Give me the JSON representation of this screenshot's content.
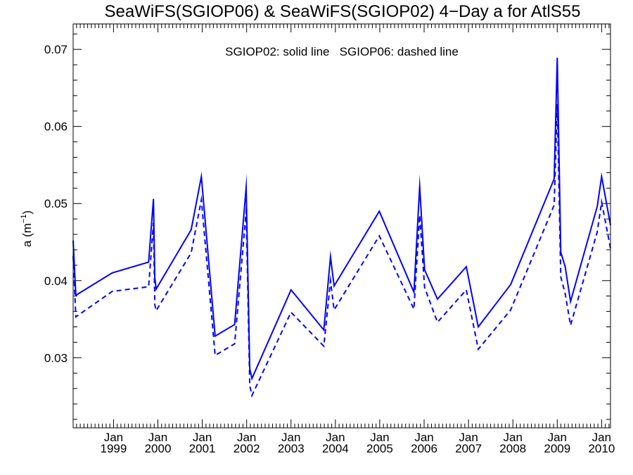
{
  "chart_data": {
    "type": "line",
    "title": "SeaWiFS(SGIOP06) & SeaWiFS(SGIOP02) 4−Day a for AtlS55",
    "ylabel_main": "a (m",
    "ylabel_sup": "−1",
    "ylabel_close": ")",
    "xlabel": "",
    "annotation": "SGIOP02: solid line   SGIOP06: dashed line",
    "x_unit": "date (decimal year)",
    "xlim": [
      1998.09,
      2010.2
    ],
    "ylim": [
      0.0209,
      0.0733
    ],
    "y_ticks": [
      0.03,
      0.04,
      0.05,
      0.06,
      0.07
    ],
    "y_tick_labels": [
      "0.03",
      "0.04",
      "0.05",
      "0.06",
      "0.07"
    ],
    "x_ticks": [
      {
        "x": 1999.0,
        "month": "Jan",
        "year": "1999"
      },
      {
        "x": 2000.0,
        "month": "Jan",
        "year": "2000"
      },
      {
        "x": 2001.0,
        "month": "Jan",
        "year": "2001"
      },
      {
        "x": 2002.0,
        "month": "Jan",
        "year": "2002"
      },
      {
        "x": 2003.0,
        "month": "Jan",
        "year": "2003"
      },
      {
        "x": 2004.0,
        "month": "Jan",
        "year": "2004"
      },
      {
        "x": 2005.0,
        "month": "Jan",
        "year": "2005"
      },
      {
        "x": 2006.0,
        "month": "Jan",
        "year": "2006"
      },
      {
        "x": 2007.0,
        "month": "Jan",
        "year": "2007"
      },
      {
        "x": 2008.0,
        "month": "Jan",
        "year": "2008"
      },
      {
        "x": 2009.0,
        "month": "Jan",
        "year": "2009"
      },
      {
        "x": 2010.0,
        "month": "Jan",
        "year": "2010"
      }
    ],
    "line_color": "#0000ff",
    "series": [
      {
        "name": "SGIOP02",
        "style": "solid",
        "x": [
          1998.09,
          1998.15,
          1998.97,
          1999.79,
          1999.9,
          1999.93,
          1999.96,
          2000.75,
          2000.98,
          2001.29,
          2001.73,
          2001.99,
          2002.07,
          2002.12,
          2003.0,
          2003.74,
          2003.89,
          2003.97,
          2004.99,
          2005.77,
          2005.9,
          2006.01,
          2006.3,
          2006.95,
          2007.22,
          2007.95,
          2008.93,
          2009.0,
          2009.08,
          2009.18,
          2009.3,
          2009.9,
          2010.0,
          2010.2
        ],
        "y": [
          0.0452,
          0.0381,
          0.041,
          0.0424,
          0.0506,
          0.0404,
          0.0389,
          0.0466,
          0.0535,
          0.0328,
          0.0343,
          0.0521,
          0.0286,
          0.0273,
          0.0388,
          0.0336,
          0.0431,
          0.0393,
          0.049,
          0.0385,
          0.0522,
          0.0414,
          0.0376,
          0.0418,
          0.034,
          0.0395,
          0.0532,
          0.0689,
          0.0437,
          0.0418,
          0.0373,
          0.0496,
          0.0535,
          0.0472
        ]
      },
      {
        "name": "SGIOP06",
        "style": "dashed",
        "x": [
          1998.09,
          1998.15,
          1998.97,
          1999.79,
          1999.9,
          1999.93,
          1999.96,
          2000.75,
          2000.98,
          2001.29,
          2001.73,
          2001.99,
          2002.07,
          2002.12,
          2003.0,
          2003.74,
          2003.89,
          2003.97,
          2004.99,
          2005.77,
          2005.9,
          2006.01,
          2006.3,
          2006.95,
          2007.22,
          2007.95,
          2008.93,
          2009.0,
          2009.08,
          2009.18,
          2009.3,
          2009.9,
          2010.0,
          2010.2
        ],
        "y": [
          0.0432,
          0.0353,
          0.0386,
          0.0392,
          0.0475,
          0.0369,
          0.0361,
          0.0436,
          0.0505,
          0.0303,
          0.0318,
          0.049,
          0.0264,
          0.0251,
          0.0359,
          0.0315,
          0.04,
          0.0362,
          0.0458,
          0.0363,
          0.0485,
          0.0391,
          0.0346,
          0.0388,
          0.0311,
          0.0362,
          0.0498,
          0.0629,
          0.0405,
          0.0383,
          0.0342,
          0.0463,
          0.0502,
          0.0442
        ]
      }
    ]
  }
}
